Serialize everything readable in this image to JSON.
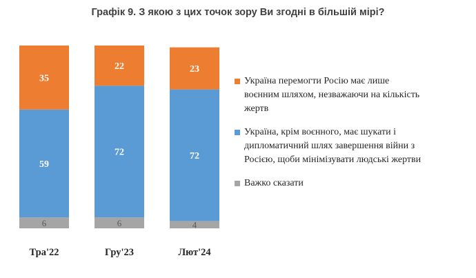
{
  "title": "Графік 9. З якою з цих точок зору Ви згодні в більшій мірі?",
  "chart_data": {
    "type": "bar",
    "stacked": true,
    "categories": [
      "Тра'22",
      "Гру'23",
      "Лют'24"
    ],
    "series": [
      {
        "name": "Важко сказати",
        "color": "#a5a5a5",
        "values": [
          6,
          6,
          4
        ]
      },
      {
        "name": "Україна, крім воєнного, має шукати і дипломатичний шлях завершення війни з Росією, щоби мінімізувати людські жертви",
        "color": "#5b9bd5",
        "values": [
          59,
          72,
          72
        ]
      },
      {
        "name": "Україна перемогти Росію має лише воєнним шляхом, незважаючи на кількість жертв",
        "color": "#ed7d31",
        "values": [
          35,
          22,
          23
        ]
      }
    ],
    "ylim": [
      0,
      100
    ],
    "grid": false,
    "legend_position": "right"
  },
  "legend": [
    {
      "lines": [
        "Україна перемогти Росію має лише",
        "воєнним шляхом, незважаючи на кількість",
        "жертв"
      ],
      "color": "#ed7d31"
    },
    {
      "lines": [
        "Україна, крім воєнного, має шукати і",
        "дипломатичний шлях завершення війни з",
        "Росією, щоби мінімізувати людські жертви"
      ],
      "color": "#5b9bd5"
    },
    {
      "lines": [
        "Важко сказати"
      ],
      "color": "#a5a5a5"
    }
  ]
}
